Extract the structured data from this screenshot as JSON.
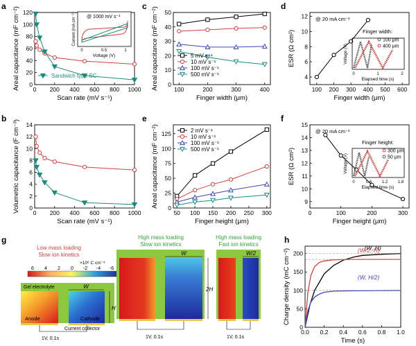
{
  "colors": {
    "red": "#cd4040",
    "teal": "#1a8b7e",
    "black": "#000000",
    "blue": "#3a46b4",
    "gray": "#555555",
    "green_text": "#35a03a",
    "green_bg": "#8dc63f"
  },
  "panels": {
    "a": {
      "letter": "a"
    },
    "b": {
      "letter": "b"
    },
    "c": {
      "letter": "c"
    },
    "d": {
      "letter": "d"
    },
    "e": {
      "letter": "e"
    },
    "f": {
      "letter": "f"
    },
    "g": {
      "letter": "g"
    },
    "h": {
      "letter": "h"
    }
  },
  "chart_data": [
    {
      "panel": "a",
      "type": "line",
      "xlabel": "Scan rate (mV s⁻¹)",
      "ylabel": "Areal capacitance (mF cm⁻²)",
      "xlim": [
        0,
        1000
      ],
      "ylim": [
        0,
        120
      ],
      "xticks": [
        0,
        200,
        400,
        600,
        800,
        1000
      ],
      "yticks": [
        0,
        20,
        40,
        60,
        80,
        100,
        120
      ],
      "series": [
        {
          "name": "",
          "color": "red",
          "marker": "circle-open",
          "x": [
            10,
            20,
            50,
            100,
            200,
            500,
            1000
          ],
          "y": [
            72,
            65,
            58,
            52,
            45,
            39,
            34
          ]
        },
        {
          "name": "Sandwich type SC",
          "color": "teal",
          "marker": "triangle-down-filled",
          "x": [
            10,
            20,
            50,
            100,
            200,
            500,
            1000
          ],
          "y": [
            118,
            100,
            78,
            55,
            30,
            15,
            8
          ]
        }
      ],
      "inset": {
        "note": "@ 1000 mV s⁻¹",
        "xlabel": "Voltage (V)",
        "ylabel": "Current (mA cm⁻²)",
        "xlim": [
          0,
          1.1
        ],
        "xticks": [
          0.0,
          0.5,
          1.0
        ],
        "ylim": [
          -0.75,
          0.75
        ]
      }
    },
    {
      "panel": "b",
      "type": "line",
      "xlabel": "Scan rate (mV s⁻¹)",
      "ylabel": "Volumetric capacitance (F cm⁻³)",
      "xlim": [
        0,
        1000
      ],
      "ylim": [
        0,
        14
      ],
      "xticks": [
        0,
        200,
        400,
        600,
        800,
        1000
      ],
      "yticks": [
        0,
        2,
        4,
        6,
        8,
        10,
        12,
        14
      ],
      "series": [
        {
          "name": "",
          "color": "red",
          "marker": "circle-open",
          "x": [
            10,
            20,
            50,
            100,
            200,
            500,
            1000
          ],
          "y": [
            12.0,
            10.4,
            9.3,
            8.4,
            7.8,
            6.9,
            6.4
          ]
        },
        {
          "name": "",
          "color": "teal",
          "marker": "triangle-down-filled",
          "x": [
            10,
            20,
            50,
            100,
            200,
            500,
            1000
          ],
          "y": [
            8.0,
            6.9,
            5.6,
            4.3,
            2.6,
            0.9,
            0.6
          ]
        }
      ]
    },
    {
      "panel": "c",
      "type": "line",
      "xlabel": "Finger width (μm)",
      "ylabel": "Areal capacitance (mF cm⁻²)",
      "xlim": [
        80,
        420
      ],
      "ylim": [
        0,
        50
      ],
      "xticks": [
        100,
        200,
        300,
        400
      ],
      "yticks": [
        0,
        10,
        20,
        30,
        40,
        50
      ],
      "legend": "lower-left",
      "series": [
        {
          "name": "5 mV s⁻¹",
          "color": "black",
          "marker": "square-open",
          "x": [
            100,
            200,
            300,
            400
          ],
          "y": [
            42,
            45,
            47,
            49
          ]
        },
        {
          "name": "10 mV s⁻¹",
          "color": "red",
          "marker": "circle-open",
          "x": [
            100,
            200,
            300,
            400
          ],
          "y": [
            37,
            38,
            39,
            39.5
          ]
        },
        {
          "name": "100 mV s⁻¹",
          "color": "blue",
          "marker": "triangle-up-open",
          "x": [
            100,
            200,
            300,
            400
          ],
          "y": [
            28,
            26,
            26,
            26.5
          ]
        },
        {
          "name": "500 mV s⁻¹",
          "color": "teal",
          "marker": "triangle-down-open",
          "x": [
            100,
            200,
            300,
            400
          ],
          "y": [
            23,
            19,
            16,
            14
          ]
        }
      ]
    },
    {
      "panel": "d",
      "type": "line",
      "xlabel": "Finger width (μm)",
      "ylabel": "ESR (Ω cm²)",
      "annotation": "@ 20 mA cm⁻²",
      "xlim": [
        60,
        640
      ],
      "ylim": [
        3,
        12.5
      ],
      "xticks": [
        100,
        200,
        300,
        400,
        500,
        600
      ],
      "yticks": [
        4,
        6,
        8,
        10,
        12
      ],
      "series": [
        {
          "name": "",
          "color": "black",
          "marker": "circle-open",
          "x": [
            100,
            200,
            300,
            400
          ],
          "y": [
            4.0,
            6.9,
            8.7,
            11.5
          ]
        }
      ],
      "inset": {
        "title": "Finger width:",
        "legend": [
          "100 μm",
          "400 μm"
        ],
        "xlabel": "Elapsed time (s)",
        "ylabel": "Voltage (V)",
        "xticks": [
          0.0,
          1.0,
          2.0
        ],
        "yticks": [
          0.0,
          0.5,
          1.0
        ]
      }
    },
    {
      "panel": "e",
      "type": "line",
      "xlabel": "Finger height (μm)",
      "ylabel": "Areal capacitance (mF cm⁻²)",
      "xlim": [
        40,
        310
      ],
      "ylim": [
        0,
        140
      ],
      "xticks": [
        50,
        100,
        150,
        200,
        250,
        300
      ],
      "yticks": [
        0,
        25,
        50,
        75,
        100,
        125
      ],
      "legend": "upper-left",
      "series": [
        {
          "name": "2 mV s⁻¹",
          "color": "black",
          "marker": "square-open",
          "x": [
            50,
            100,
            150,
            200,
            300
          ],
          "y": [
            20,
            55,
            75,
            95,
            132
          ]
        },
        {
          "name": "10 mV s⁻¹",
          "color": "red",
          "marker": "circle-open",
          "x": [
            50,
            100,
            150,
            200,
            300
          ],
          "y": [
            15,
            30,
            40,
            48,
            70
          ]
        },
        {
          "name": "100 mV s⁻¹",
          "color": "blue",
          "marker": "triangle-up-open",
          "x": [
            50,
            100,
            150,
            200,
            300
          ],
          "y": [
            10,
            18,
            24,
            30,
            40
          ]
        },
        {
          "name": "500 mV s⁻¹",
          "color": "teal",
          "marker": "triangle-down-open",
          "x": [
            50,
            100,
            150,
            200,
            300
          ],
          "y": [
            5,
            10,
            13,
            17,
            22
          ]
        }
      ]
    },
    {
      "panel": "f",
      "type": "line",
      "xlabel": "Finger height (μm)",
      "ylabel": "ESR (Ω cm²)",
      "annotation": "@ 20 mA cm⁻²",
      "xlim": [
        0,
        320
      ],
      "ylim": [
        8.5,
        15
      ],
      "xticks": [
        0,
        100,
        200,
        300
      ],
      "yticks": [
        9,
        10,
        11,
        12,
        13,
        14,
        15
      ],
      "series": [
        {
          "name": "",
          "color": "black",
          "marker": "circle-open",
          "x": [
            50,
            100,
            150,
            200,
            300
          ],
          "y": [
            14.2,
            12.6,
            11.5,
            10.3,
            9.2
          ]
        }
      ],
      "inset": {
        "title": "Finger height:",
        "legend": [
          "300 μm",
          "50 μm"
        ],
        "xlabel": "Elapsed time (s)",
        "ylabel": "Voltage (V)",
        "xticks": [
          0.0,
          0.6,
          1.2,
          1.8
        ]
      }
    },
    {
      "panel": "h",
      "type": "line",
      "xlabel": "Time (s)",
      "ylabel": "Charge density (mC cm⁻²)",
      "xlim": [
        0,
        1.0
      ],
      "ylim": [
        0,
        220
      ],
      "xticks": [
        0.0,
        0.2,
        0.4,
        0.6,
        0.8,
        1.0
      ],
      "yticks": [
        0,
        50,
        100,
        150,
        200
      ],
      "series": [
        {
          "name": "(W, H)",
          "color": "black",
          "x": [
            0,
            0.05,
            0.1,
            0.2,
            0.3,
            0.4,
            0.5,
            0.6,
            0.8,
            1.0
          ],
          "y": [
            0,
            60,
            100,
            145,
            168,
            182,
            190,
            195,
            198,
            200
          ]
        },
        {
          "name": "(W/2, H)",
          "color": "red",
          "x": [
            0,
            0.03,
            0.06,
            0.1,
            0.15,
            0.2,
            0.3,
            0.5,
            1.0
          ],
          "y": [
            0,
            95,
            140,
            165,
            176,
            180,
            183,
            184,
            184
          ]
        },
        {
          "name": "(W, H/2)",
          "color": "blue",
          "x": [
            0,
            0.03,
            0.06,
            0.1,
            0.15,
            0.2,
            0.3,
            0.5,
            1.0
          ],
          "y": [
            0,
            45,
            68,
            82,
            90,
            95,
            98,
            99,
            100
          ]
        }
      ]
    }
  ],
  "schematic": {
    "colorbar": {
      "unit": "×10⁶ C cm⁻³",
      "ticks": [
        "6",
        "4",
        "2",
        "0",
        "-2",
        "-4",
        "-6"
      ]
    },
    "low": {
      "title1": "Low mass loading",
      "title2": "Slow ion kinetics",
      "gel": "Gel electrolyte",
      "w": "W",
      "h": "H",
      "anode": "Anode",
      "cathode": "Cathode",
      "collector": "Current collector",
      "bias": "1V, 0.1s"
    },
    "mid": {
      "title1": "High mass loading",
      "title2": "Slow ion kinetics",
      "w": "W",
      "h": "2H",
      "bias": "1V, 0.1s"
    },
    "right": {
      "title1": "High mass loading",
      "title2": "Fast ion kinetics",
      "w": "W/2",
      "bias": "1V, 0.1s"
    }
  }
}
